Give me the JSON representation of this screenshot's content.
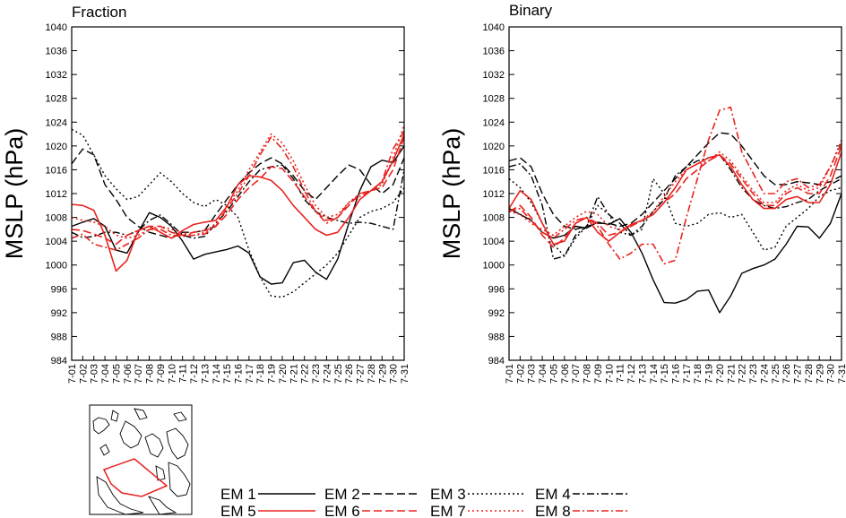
{
  "chart_data": [
    {
      "type": "line",
      "title": "Fraction",
      "ylabel": "MSLP (hPa)",
      "xlabel": "",
      "ylim": [
        984,
        1040
      ],
      "yticks": [
        984,
        988,
        992,
        996,
        1000,
        1004,
        1008,
        1012,
        1016,
        1020,
        1024,
        1028,
        1032,
        1036,
        1040
      ],
      "categories": [
        "7-01",
        "7-02",
        "7-03",
        "7-04",
        "7-05",
        "7-06",
        "7-07",
        "7-08",
        "7-09",
        "7-10",
        "7-11",
        "7-12",
        "7-13",
        "7-14",
        "7-15",
        "7-16",
        "7-17",
        "7-18",
        "7-19",
        "7-20",
        "7-21",
        "7-22",
        "7-23",
        "7-24",
        "7-25",
        "7-26",
        "7-27",
        "7-28",
        "7-29",
        "7-30",
        "7-31"
      ],
      "series": [
        {
          "name": "EM 1",
          "values": [
            1006.5,
            1007.2,
            1007.8,
            1006.5,
            1002.5,
            1002.0,
            1005.5,
            1008.8,
            1008.0,
            1006.5,
            1004.0,
            1001.0,
            1001.8,
            1002.2,
            1002.6,
            1003.2,
            1002.0,
            998.0,
            996.8,
            997.0,
            1000.4,
            1000.8,
            998.8,
            997.6,
            1001.0,
            1007.0,
            1012.5,
            1016.5,
            1017.6,
            1017.2,
            1020.0
          ]
        },
        {
          "name": "EM 2",
          "values": [
            1017.0,
            1019.5,
            1018.5,
            1013.5,
            1011.0,
            1008.0,
            1006.5,
            1005.5,
            1005.0,
            1004.5,
            1005.5,
            1005.5,
            1005.8,
            1008.5,
            1011.0,
            1013.5,
            1015.5,
            1017.0,
            1018.0,
            1017.0,
            1015.0,
            1012.5,
            1011.0,
            1013.0,
            1015.0,
            1016.8,
            1016.0,
            1013.5,
            1012.0,
            1013.5,
            1018.0
          ]
        },
        {
          "name": "EM 3",
          "values": [
            1022.8,
            1021.8,
            1018.5,
            1015.0,
            1012.8,
            1011.0,
            1011.5,
            1013.5,
            1015.5,
            1014.0,
            1012.0,
            1010.5,
            1009.8,
            1011.0,
            1010.0,
            1008.0,
            1002.5,
            998.0,
            994.8,
            994.6,
            995.5,
            997.0,
            998.5,
            1000.0,
            1002.0,
            1005.0,
            1008.0,
            1009.0,
            1009.5,
            1010.5,
            1013.0
          ]
        },
        {
          "name": "EM 4",
          "values": [
            1005.5,
            1004.6,
            1004.8,
            1005.5,
            1005.5,
            1005.0,
            1005.8,
            1007.5,
            1008.4,
            1006.8,
            1005.0,
            1004.5,
            1004.8,
            1007.0,
            1009.0,
            1011.5,
            1014.0,
            1016.0,
            1016.5,
            1016.8,
            1014.5,
            1011.0,
            1009.0,
            1008.0,
            1007.5,
            1007.0,
            1007.2,
            1007.0,
            1006.5,
            1006.0,
            1016.0
          ]
        },
        {
          "name": "EM 5",
          "values": [
            1010.2,
            1010.0,
            1009.2,
            1005.0,
            999.0,
            1000.8,
            1005.8,
            1006.5,
            1005.5,
            1004.5,
            1005.8,
            1006.8,
            1007.2,
            1007.5,
            1009.8,
            1013.5,
            1015.0,
            1014.8,
            1014.2,
            1012.5,
            1010.0,
            1008.0,
            1006.0,
            1005.0,
            1005.5,
            1008.0,
            1011.0,
            1012.5,
            1014.0,
            1017.5,
            1022.0
          ]
        },
        {
          "name": "EM 6",
          "values": [
            1006.0,
            1005.8,
            1005.2,
            1004.5,
            1003.5,
            1005.0,
            1005.8,
            1006.5,
            1006.5,
            1005.5,
            1005.0,
            1005.5,
            1005.8,
            1006.5,
            1008.5,
            1011.0,
            1013.0,
            1014.5,
            1016.5,
            1016.2,
            1014.0,
            1011.5,
            1009.0,
            1007.5,
            1008.0,
            1010.0,
            1012.0,
            1012.5,
            1013.0,
            1016.0,
            1021.5
          ]
        },
        {
          "name": "EM 7",
          "values": [
            1008.0,
            1007.5,
            1007.2,
            1006.5,
            1005.0,
            1004.5,
            1005.0,
            1006.0,
            1006.5,
            1006.0,
            1005.5,
            1005.0,
            1005.5,
            1007.0,
            1010.0,
            1012.5,
            1016.0,
            1019.0,
            1022.0,
            1020.5,
            1017.5,
            1013.5,
            1010.0,
            1008.0,
            1008.5,
            1010.5,
            1012.0,
            1012.5,
            1013.5,
            1018.0,
            1023.5
          ]
        },
        {
          "name": "EM 8",
          "values": [
            1004.5,
            1005.2,
            1003.5,
            1003.0,
            1002.5,
            1003.5,
            1004.5,
            1006.0,
            1006.0,
            1005.0,
            1004.8,
            1005.0,
            1005.2,
            1006.5,
            1009.5,
            1012.0,
            1015.0,
            1018.5,
            1021.5,
            1019.5,
            1016.5,
            1012.5,
            1009.0,
            1007.0,
            1008.0,
            1010.5,
            1011.5,
            1012.5,
            1014.0,
            1019.5,
            1022.5
          ]
        }
      ]
    },
    {
      "type": "line",
      "title": "Binary",
      "ylabel": "MSLP (hPa)",
      "xlabel": "",
      "ylim": [
        984,
        1040
      ],
      "yticks": [
        984,
        988,
        992,
        996,
        1000,
        1004,
        1008,
        1012,
        1016,
        1020,
        1024,
        1028,
        1032,
        1036,
        1040
      ],
      "categories": [
        "7-01",
        "7-02",
        "7-03",
        "7-04",
        "7-05",
        "7-06",
        "7-07",
        "7-08",
        "7-09",
        "7-10",
        "7-11",
        "7-12",
        "7-13",
        "7-14",
        "7-15",
        "7-16",
        "7-17",
        "7-18",
        "7-19",
        "7-20",
        "7-21",
        "7-22",
        "7-23",
        "7-24",
        "7-25",
        "7-26",
        "7-27",
        "7-28",
        "7-29",
        "7-30",
        "7-31"
      ],
      "series": [
        {
          "name": "EM 1",
          "values": [
            1009.5,
            1008.5,
            1007.5,
            1005.5,
            1004.5,
            1005.0,
            1006.5,
            1006.2,
            1007.2,
            1006.8,
            1007.8,
            1005.5,
            1002.0,
            997.5,
            993.7,
            993.6,
            994.2,
            995.6,
            995.8,
            992.0,
            994.8,
            998.6,
            999.4,
            1000.0,
            1001.0,
            1003.5,
            1006.5,
            1006.4,
            1004.5,
            1007.0,
            1012.0
          ]
        },
        {
          "name": "EM 2",
          "values": [
            1017.5,
            1018.0,
            1016.5,
            1012.0,
            1008.5,
            1006.5,
            1006.0,
            1006.5,
            1007.0,
            1007.0,
            1006.5,
            1007.0,
            1008.5,
            1010.5,
            1012.5,
            1014.5,
            1016.5,
            1018.5,
            1020.5,
            1022.2,
            1022.0,
            1020.0,
            1017.5,
            1015.0,
            1013.5,
            1013.5,
            1014.0,
            1013.8,
            1013.5,
            1014.0,
            1015.0
          ]
        },
        {
          "name": "EM 3",
          "values": [
            1014.5,
            1013.0,
            1010.5,
            1007.0,
            1003.5,
            1001.5,
            1004.5,
            1006.5,
            1010.0,
            1008.5,
            1005.5,
            1005.0,
            1006.0,
            1014.5,
            1012.0,
            1007.0,
            1006.5,
            1007.0,
            1008.5,
            1008.8,
            1008.0,
            1008.5,
            1005.5,
            1002.5,
            1003.0,
            1006.5,
            1008.0,
            1009.5,
            1011.5,
            1012.5,
            1013.0
          ]
        },
        {
          "name": "EM 4",
          "values": [
            1016.5,
            1017.0,
            1015.0,
            1010.0,
            1001.0,
            1001.5,
            1005.0,
            1006.5,
            1011.5,
            1008.5,
            1007.0,
            1005.0,
            1006.5,
            1009.0,
            1011.0,
            1015.0,
            1016.5,
            1017.5,
            1018.0,
            1018.5,
            1016.0,
            1013.0,
            1011.0,
            1010.0,
            1009.5,
            1009.8,
            1010.5,
            1011.0,
            1012.5,
            1013.5,
            1014.5
          ]
        },
        {
          "name": "EM 5",
          "values": [
            1009.5,
            1012.5,
            1011.0,
            1007.0,
            1003.5,
            1004.0,
            1007.0,
            1008.0,
            1005.5,
            1004.0,
            1005.5,
            1006.8,
            1007.5,
            1008.5,
            1010.5,
            1013.0,
            1016.0,
            1017.0,
            1018.0,
            1018.5,
            1016.5,
            1013.5,
            1011.0,
            1009.5,
            1009.5,
            1011.0,
            1011.5,
            1010.5,
            1010.5,
            1013.5,
            1019.0
          ]
        },
        {
          "name": "EM 6",
          "values": [
            1009.0,
            1010.0,
            1008.0,
            1005.0,
            1003.0,
            1004.5,
            1007.0,
            1008.0,
            1007.0,
            1005.0,
            1005.5,
            1006.5,
            1007.5,
            1008.5,
            1010.5,
            1012.0,
            1014.5,
            1016.0,
            1017.5,
            1018.5,
            1017.0,
            1014.5,
            1012.0,
            1010.0,
            1010.0,
            1012.0,
            1013.0,
            1012.0,
            1012.0,
            1015.0,
            1020.0
          ]
        },
        {
          "name": "EM 7",
          "values": [
            1009.0,
            1008.5,
            1007.0,
            1006.0,
            1005.0,
            1006.5,
            1008.0,
            1009.0,
            1008.5,
            1006.5,
            1006.0,
            1006.5,
            1007.5,
            1009.0,
            1011.5,
            1014.0,
            1016.0,
            1017.0,
            1017.5,
            1019.0,
            1017.5,
            1015.0,
            1012.5,
            1010.5,
            1010.5,
            1012.5,
            1013.5,
            1012.5,
            1013.0,
            1016.5,
            1021.0
          ]
        },
        {
          "name": "EM 8",
          "values": [
            1009.0,
            1009.5,
            1007.5,
            1005.5,
            1004.5,
            1006.0,
            1007.5,
            1008.0,
            1006.5,
            1003.5,
            1001.0,
            1002.0,
            1003.5,
            1003.5,
            1000.2,
            1000.8,
            1008.0,
            1014.5,
            1021.0,
            1026.0,
            1026.5,
            1019.0,
            1015.5,
            1012.0,
            1012.0,
            1014.0,
            1014.5,
            1013.0,
            1013.5,
            1016.5,
            1020.5
          ]
        }
      ]
    }
  ],
  "legend": {
    "placement": "bottom-right",
    "items": [
      {
        "label": "EM 1",
        "color": "#000000",
        "dash": "solid"
      },
      {
        "label": "EM 2",
        "color": "#000000",
        "dash": "long-dash"
      },
      {
        "label": "EM 3",
        "color": "#000000",
        "dash": "dot"
      },
      {
        "label": "EM 4",
        "color": "#000000",
        "dash": "dash-dot"
      },
      {
        "label": "EM 5",
        "color": "#e8231f",
        "dash": "solid"
      },
      {
        "label": "EM 6",
        "color": "#e8231f",
        "dash": "long-dash"
      },
      {
        "label": "EM 7",
        "color": "#e8231f",
        "dash": "dot"
      },
      {
        "label": "EM 8",
        "color": "#e8231f",
        "dash": "dash-dot"
      }
    ]
  },
  "map_inset": {
    "name": "domain-map",
    "region_color": "#e8231f"
  }
}
